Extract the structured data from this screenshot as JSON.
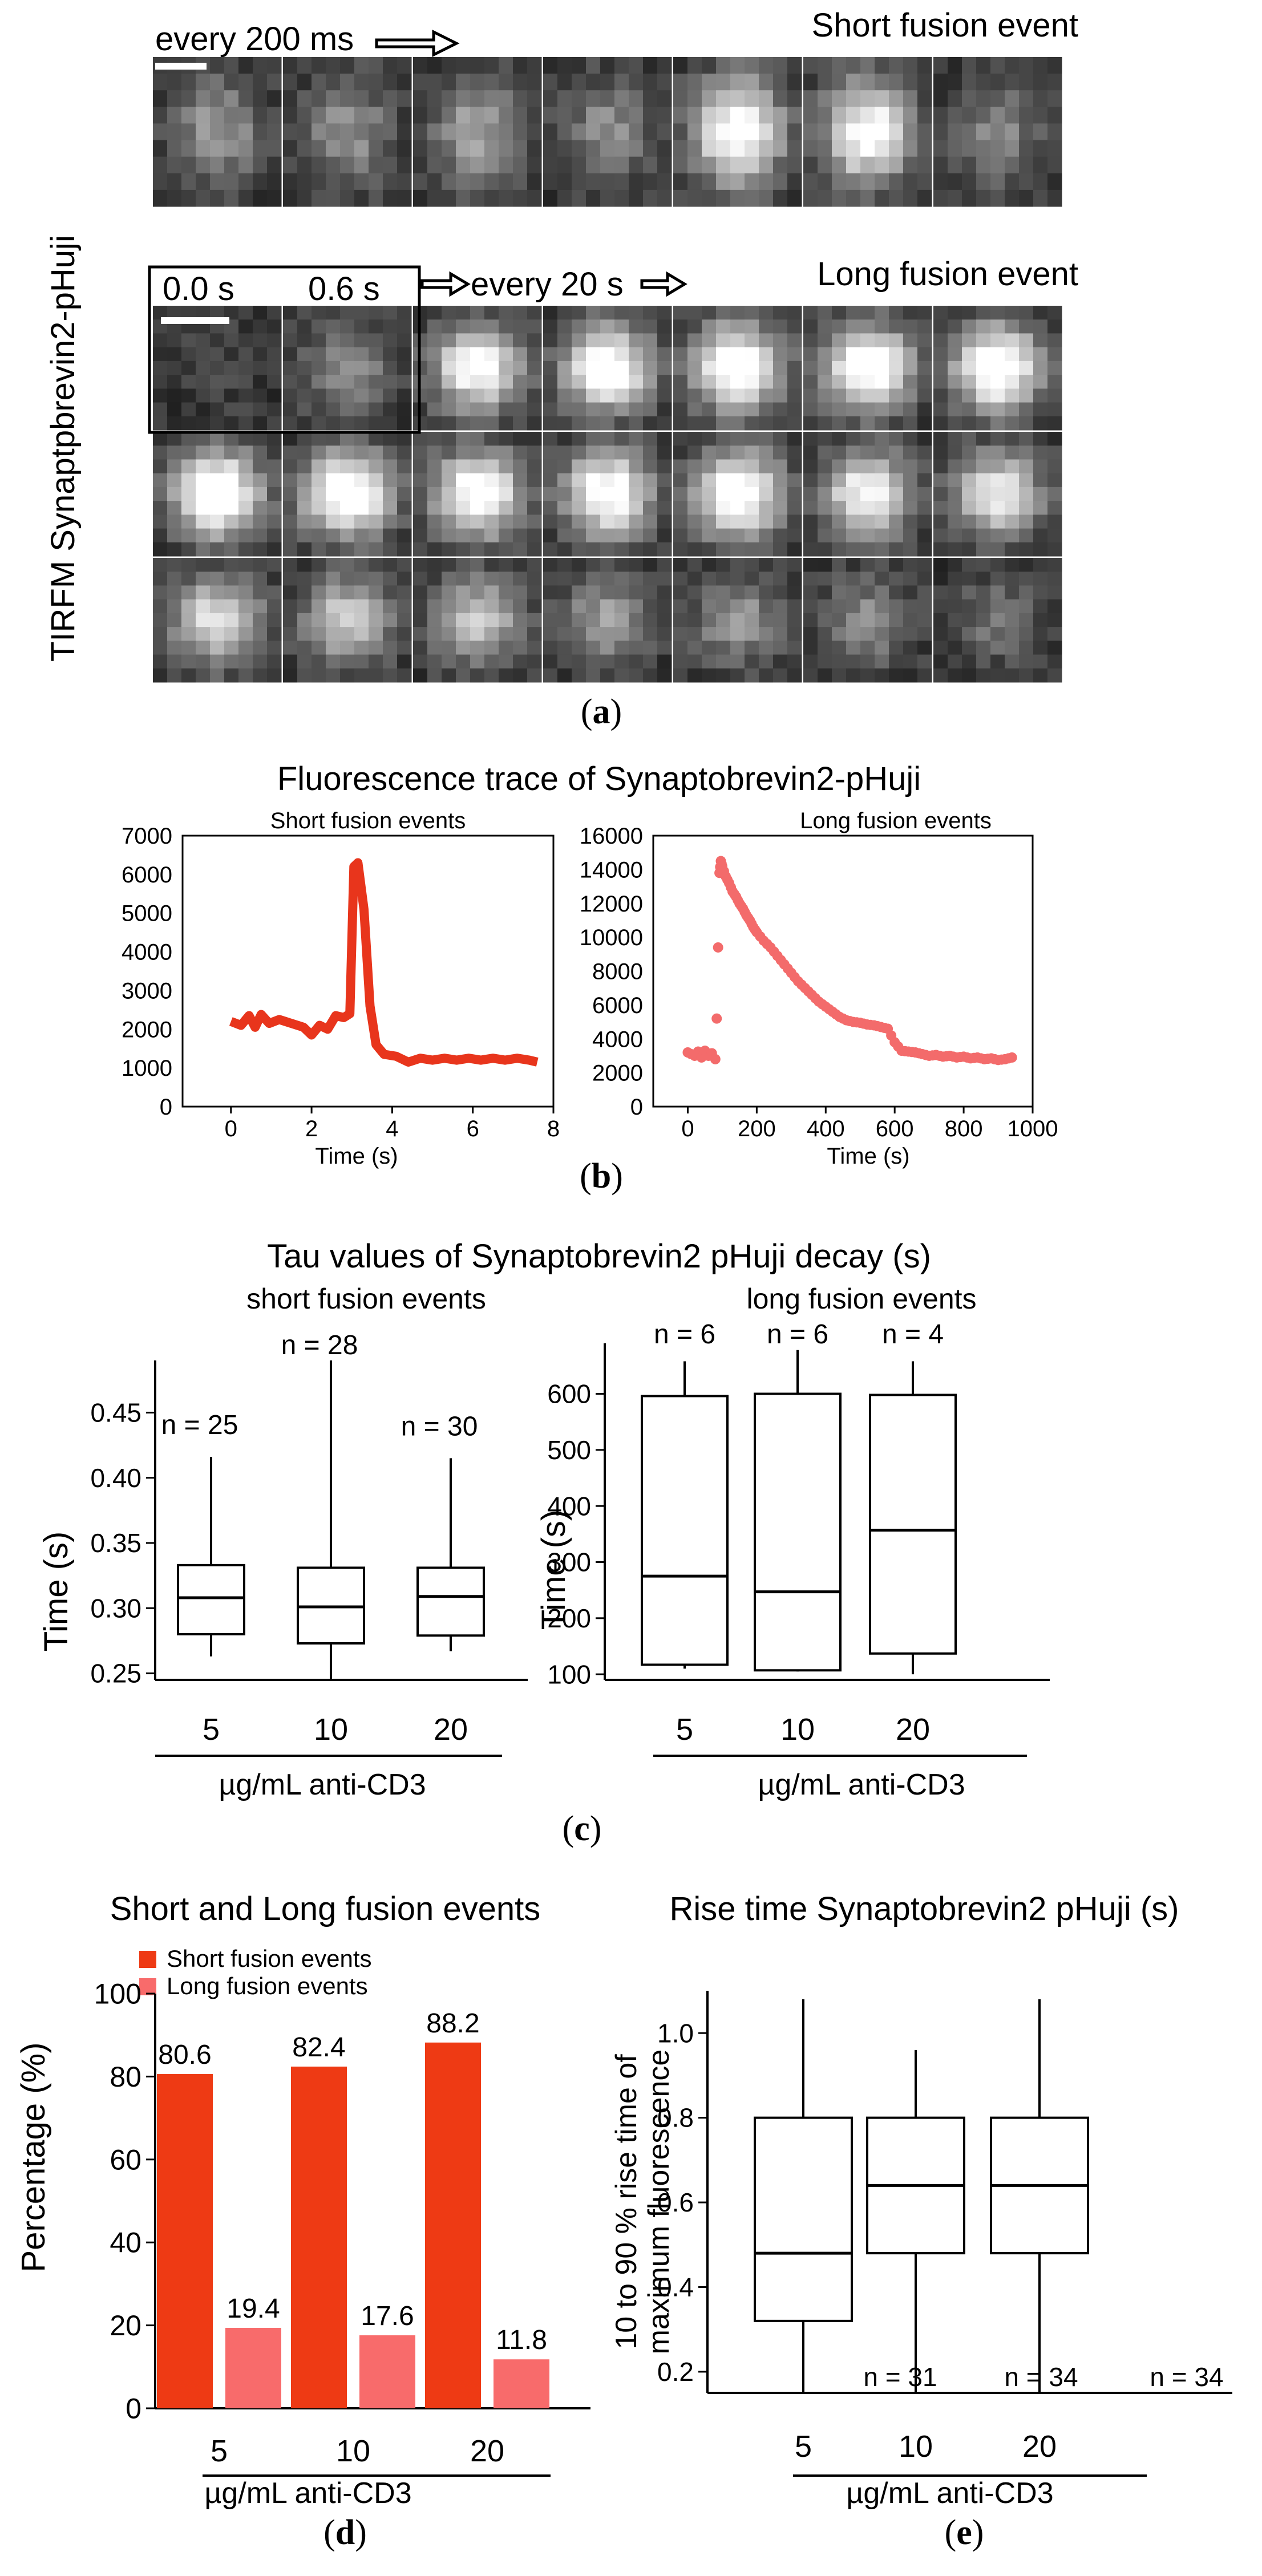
{
  "panel_a": {
    "label": "(a)",
    "label_letter": "a",
    "ylabel": "TIRFM   Synaptpbrevin2-pHuji",
    "short": {
      "interval_label": "every 200 ms",
      "title": "Short fusion event",
      "intensity": [
        0.42,
        0.38,
        0.45,
        0.35,
        0.92,
        0.85,
        0.32
      ]
    },
    "long": {
      "time_label_0": "0.0 s",
      "time_label_1": "0.6 s",
      "interval_label": "every 20 s",
      "title": "Long fusion event",
      "rows": [
        [
          0.08,
          0.38,
          0.86,
          0.92,
          0.97,
          0.95,
          0.96
        ],
        [
          0.98,
          0.98,
          0.92,
          0.9,
          0.95,
          0.82,
          0.72
        ],
        [
          0.7,
          0.62,
          0.62,
          0.45,
          0.4,
          0.35,
          0.25
        ]
      ]
    }
  },
  "panel_b": {
    "label_letter": "b",
    "title": "Fluorescence  trace of Synaptobrevin2-pHuji",
    "short": {
      "subtitle": "Short fusion events",
      "xlabel": "Time (s)",
      "xticks": [
        "0",
        "2",
        "4",
        "6",
        "8"
      ],
      "yticks": [
        "0",
        "1000",
        "2000",
        "3000",
        "4000",
        "5000",
        "6000",
        "7000"
      ],
      "color": "#e8351c"
    },
    "long": {
      "subtitle": "Long fusion events",
      "xlabel": "Time (s)",
      "xticks": [
        "0",
        "200",
        "400",
        "600",
        "800",
        "1000"
      ],
      "yticks": [
        "0",
        "2000",
        "4000",
        "6000",
        "8000",
        "10000",
        "12000",
        "14000",
        "16000"
      ],
      "color": "#f36b6b"
    }
  },
  "panel_c": {
    "label_letter": "c",
    "title": "Tau values of Synaptobrevin2 pHuji decay (s)",
    "short": {
      "subtitle": "short fusion events",
      "ylabel": "Time (s)",
      "yticks": [
        "0.25",
        "0.30",
        "0.35",
        "0.40",
        "0.45"
      ],
      "categories": [
        "5",
        "10",
        "20"
      ],
      "n_labels": [
        "n = 25",
        "n = 28",
        "n = 30"
      ],
      "xlabel": "µg/mL anti-CD3"
    },
    "long": {
      "subtitle": "long fusion events",
      "ylabel": "Time (s)",
      "yticks": [
        "100",
        "200",
        "300",
        "400",
        "500",
        "600"
      ],
      "categories": [
        "5",
        "10",
        "20"
      ],
      "n_labels": [
        "n = 6",
        "n = 6",
        "n = 4"
      ],
      "xlabel": "µg/mL anti-CD3"
    }
  },
  "panel_d": {
    "label_letter": "d",
    "title": "Short and Long fusion events",
    "ylabel": "Percentage (%)",
    "yticks": [
      "0",
      "20",
      "40",
      "60",
      "80",
      "100"
    ],
    "categories": [
      "5",
      "10",
      "20"
    ],
    "xlabel": "µg/mL anti-CD3",
    "legend": [
      "Short fusion events",
      "Long fusion events"
    ],
    "colors": {
      "short": "#ee3a14",
      "long": "#f86b6b"
    }
  },
  "panel_e": {
    "label_letter": "e",
    "title": "Rise time Synaptobrevin2 pHuji (s)",
    "ylabel_line1": "10 to 90 % rise time of",
    "ylabel_line2": "maximum fluorescence",
    "yticks": [
      "0.2",
      "0.4",
      "0.6",
      "0.8",
      "1.0"
    ],
    "categories": [
      "5",
      "10",
      "20"
    ],
    "n_labels": [
      "n = 31",
      "n = 34",
      "n = 34"
    ],
    "xlabel": "µg/mL anti-CD3"
  },
  "chart_data": [
    {
      "type": "line",
      "panel": "b-left",
      "title": "Short fusion events",
      "xlabel": "Time (s)",
      "xlim": [
        -1.2,
        8
      ],
      "ylim": [
        0,
        7000
      ],
      "series": [
        {
          "x": [
            0,
            0.25,
            0.45,
            0.6,
            0.75,
            0.95,
            1.2,
            1.5,
            1.8,
            2.0,
            2.2,
            2.4,
            2.6,
            2.8,
            2.95,
            3.05,
            3.15,
            3.3,
            3.45,
            3.6,
            3.8,
            4.1,
            4.4,
            4.7,
            5.0,
            5.3,
            5.6,
            5.9,
            6.2,
            6.5,
            6.8,
            7.1,
            7.4,
            7.6
          ],
          "y": [
            2200,
            2100,
            2350,
            2050,
            2380,
            2150,
            2250,
            2150,
            2050,
            1850,
            2100,
            2000,
            2350,
            2300,
            2400,
            6200,
            6300,
            5100,
            2600,
            1600,
            1350,
            1300,
            1150,
            1250,
            1200,
            1250,
            1200,
            1250,
            1200,
            1250,
            1200,
            1250,
            1200,
            1150
          ]
        }
      ]
    },
    {
      "type": "scatter",
      "panel": "b-right",
      "title": "Long fusion events",
      "xlabel": "Time (s)",
      "xlim": [
        -100,
        1000
      ],
      "ylim": [
        0,
        16000
      ],
      "series": [
        {
          "x": [
            0,
            10,
            20,
            30,
            40,
            50,
            60,
            70,
            80,
            84,
            88,
            92,
            96,
            100,
            110,
            120,
            130,
            140,
            150,
            160,
            170,
            180,
            190,
            200,
            220,
            240,
            260,
            280,
            300,
            320,
            340,
            360,
            380,
            400,
            420,
            440,
            460,
            480,
            500,
            520,
            540,
            560,
            580,
            600,
            620,
            640,
            660,
            680,
            700,
            720,
            740,
            760,
            780,
            800,
            820,
            840,
            860,
            880,
            900,
            920,
            940
          ],
          "y": [
            3200,
            3100,
            3000,
            3250,
            2900,
            3300,
            3000,
            3150,
            2800,
            5200,
            9400,
            13800,
            14500,
            14200,
            13600,
            13200,
            12700,
            12400,
            12000,
            11700,
            11300,
            11000,
            10600,
            10300,
            9800,
            9400,
            8900,
            8400,
            7900,
            7400,
            7000,
            6600,
            6200,
            5900,
            5600,
            5300,
            5100,
            5000,
            4950,
            4850,
            4800,
            4700,
            4600,
            3800,
            3300,
            3250,
            3200,
            3100,
            3000,
            3050,
            2950,
            3000,
            2900,
            2950,
            2850,
            2900,
            2800,
            2850,
            2750,
            2800,
            2900
          ]
        }
      ]
    },
    {
      "type": "box",
      "panel": "c-left",
      "title": "short fusion events",
      "ylabel": "Time (s)",
      "xlabel": "µg/mL anti-CD3",
      "ylim": [
        0.245,
        0.49
      ],
      "categories": [
        "5",
        "10",
        "20"
      ],
      "boxes": [
        {
          "min": 0.263,
          "q1": 0.28,
          "median": 0.308,
          "q3": 0.333,
          "max": 0.416
        },
        {
          "min": 0.245,
          "q1": 0.273,
          "median": 0.301,
          "q3": 0.331,
          "max": 0.49
        },
        {
          "min": 0.267,
          "q1": 0.279,
          "median": 0.309,
          "q3": 0.331,
          "max": 0.415
        }
      ]
    },
    {
      "type": "box",
      "panel": "c-right",
      "title": "long fusion events",
      "ylabel": "Time (s)",
      "xlabel": "µg/mL anti-CD3",
      "ylim": [
        90,
        690
      ],
      "categories": [
        "5",
        "10",
        "20"
      ],
      "boxes": [
        {
          "min": 110,
          "q1": 117,
          "median": 275,
          "q3": 596,
          "max": 658
        },
        {
          "min": 105,
          "q1": 107,
          "median": 247,
          "q3": 600,
          "max": 678
        },
        {
          "min": 100,
          "q1": 137,
          "median": 357,
          "q3": 598,
          "max": 658
        }
      ]
    },
    {
      "type": "bar",
      "panel": "d",
      "title": "Short and Long fusion events",
      "ylabel": "Percentage (%)",
      "xlabel": "µg/mL anti-CD3",
      "ylim": [
        0,
        100
      ],
      "categories": [
        "5",
        "10",
        "20"
      ],
      "series": [
        {
          "name": "Short fusion events",
          "values": [
            80.6,
            82.4,
            88.2
          ]
        },
        {
          "name": "Long fusion events",
          "values": [
            19.4,
            17.6,
            11.8
          ]
        }
      ]
    },
    {
      "type": "box",
      "panel": "e",
      "title": "Rise time Synaptobrevin2 pHuji (s)",
      "xlabel": "µg/mL anti-CD3",
      "ylim": [
        0.15,
        1.1
      ],
      "categories": [
        "5",
        "10",
        "20"
      ],
      "boxes": [
        {
          "min": 0.15,
          "q1": 0.32,
          "median": 0.48,
          "q3": 0.8,
          "max": 1.08
        },
        {
          "min": 0.15,
          "q1": 0.48,
          "median": 0.64,
          "q3": 0.8,
          "max": 0.96
        },
        {
          "min": 0.15,
          "q1": 0.48,
          "median": 0.64,
          "q3": 0.8,
          "max": 1.08
        }
      ]
    }
  ]
}
